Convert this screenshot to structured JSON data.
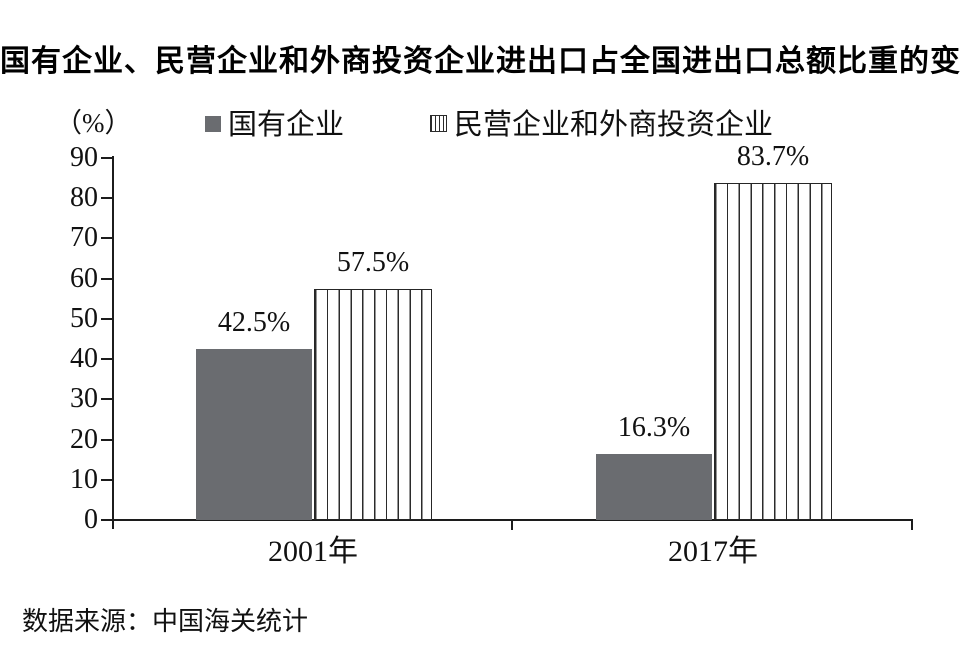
{
  "title": "国有企业、民营企业和外商投资企业进出口占全国进出口总额比重的变化",
  "y_axis_unit_label": "（%）",
  "legend": [
    {
      "name": "国有企业",
      "swatch": "solid",
      "color": "#6a6c70"
    },
    {
      "name": "民营企业和外商投资企业",
      "swatch": "striped",
      "stripe_color": "#2b2b2b"
    }
  ],
  "source": "数据来源：中国海关统计",
  "chart_data": {
    "type": "bar",
    "categories": [
      "2001年",
      "2017年"
    ],
    "series": [
      {
        "name": "国有企业",
        "style": "solid",
        "color": "#6a6c70",
        "values": [
          42.5,
          16.3
        ],
        "labels": [
          "42.5%",
          "16.3%"
        ]
      },
      {
        "name": "民营企业和外商投资企业",
        "style": "striped",
        "values": [
          57.5,
          83.7
        ],
        "labels": [
          "57.5%",
          "83.7%"
        ]
      }
    ],
    "ylim": [
      0,
      90
    ],
    "yticks": [
      0,
      10,
      20,
      30,
      40,
      50,
      60,
      70,
      80,
      90
    ],
    "ylabel": "（%）",
    "grid": false,
    "legend_position": "top",
    "bar_label_format": "value + %"
  }
}
